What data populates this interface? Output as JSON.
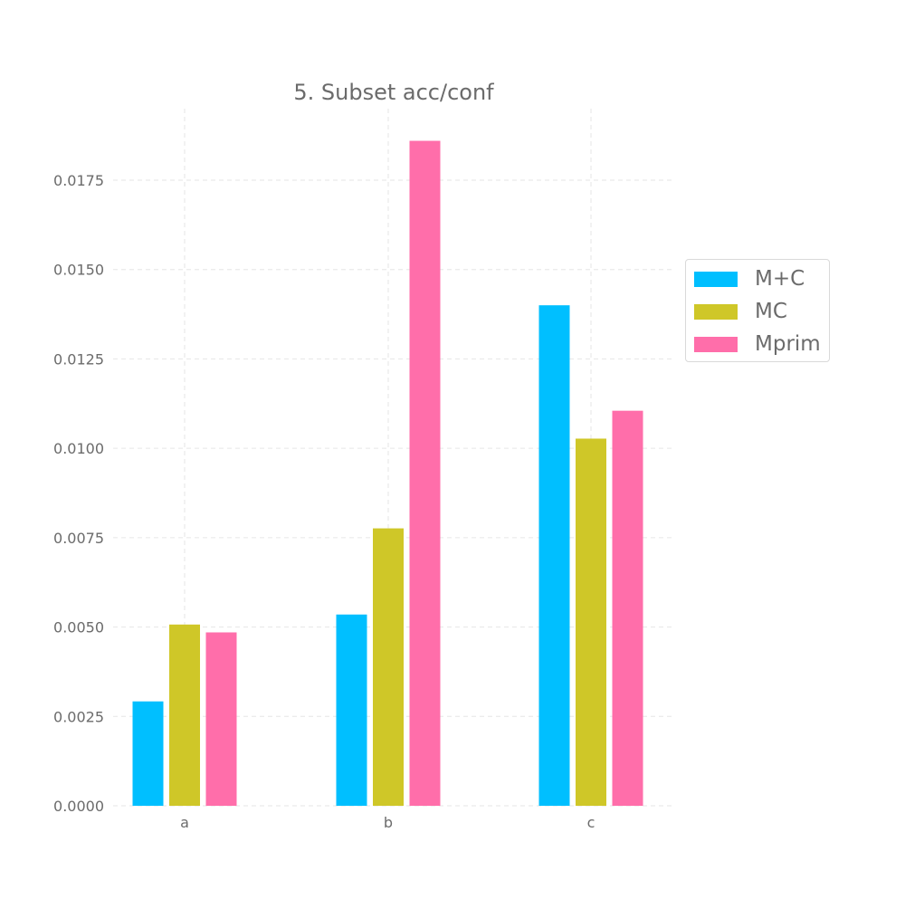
{
  "chart_data": {
    "type": "bar",
    "title": "5. Subset acc/conf",
    "xlabel": "",
    "ylabel": "",
    "categories": [
      "a",
      "b",
      "c"
    ],
    "series": [
      {
        "name": "M+C",
        "color": "#00bfff",
        "values": [
          0.00292,
          0.00535,
          0.014
        ]
      },
      {
        "name": "MC",
        "color": "#cfc728",
        "values": [
          0.00507,
          0.00776,
          0.01027
        ]
      },
      {
        "name": "Mprim",
        "color": "#ff6eaa",
        "values": [
          0.00485,
          0.0186,
          0.01105
        ]
      }
    ],
    "ylim": [
      0,
      0.0195
    ],
    "yticks": [
      "0.0000",
      "0.0025",
      "0.0050",
      "0.0075",
      "0.0100",
      "0.0125",
      "0.0150",
      "0.0175"
    ],
    "grid": true,
    "legend_position": "right"
  }
}
